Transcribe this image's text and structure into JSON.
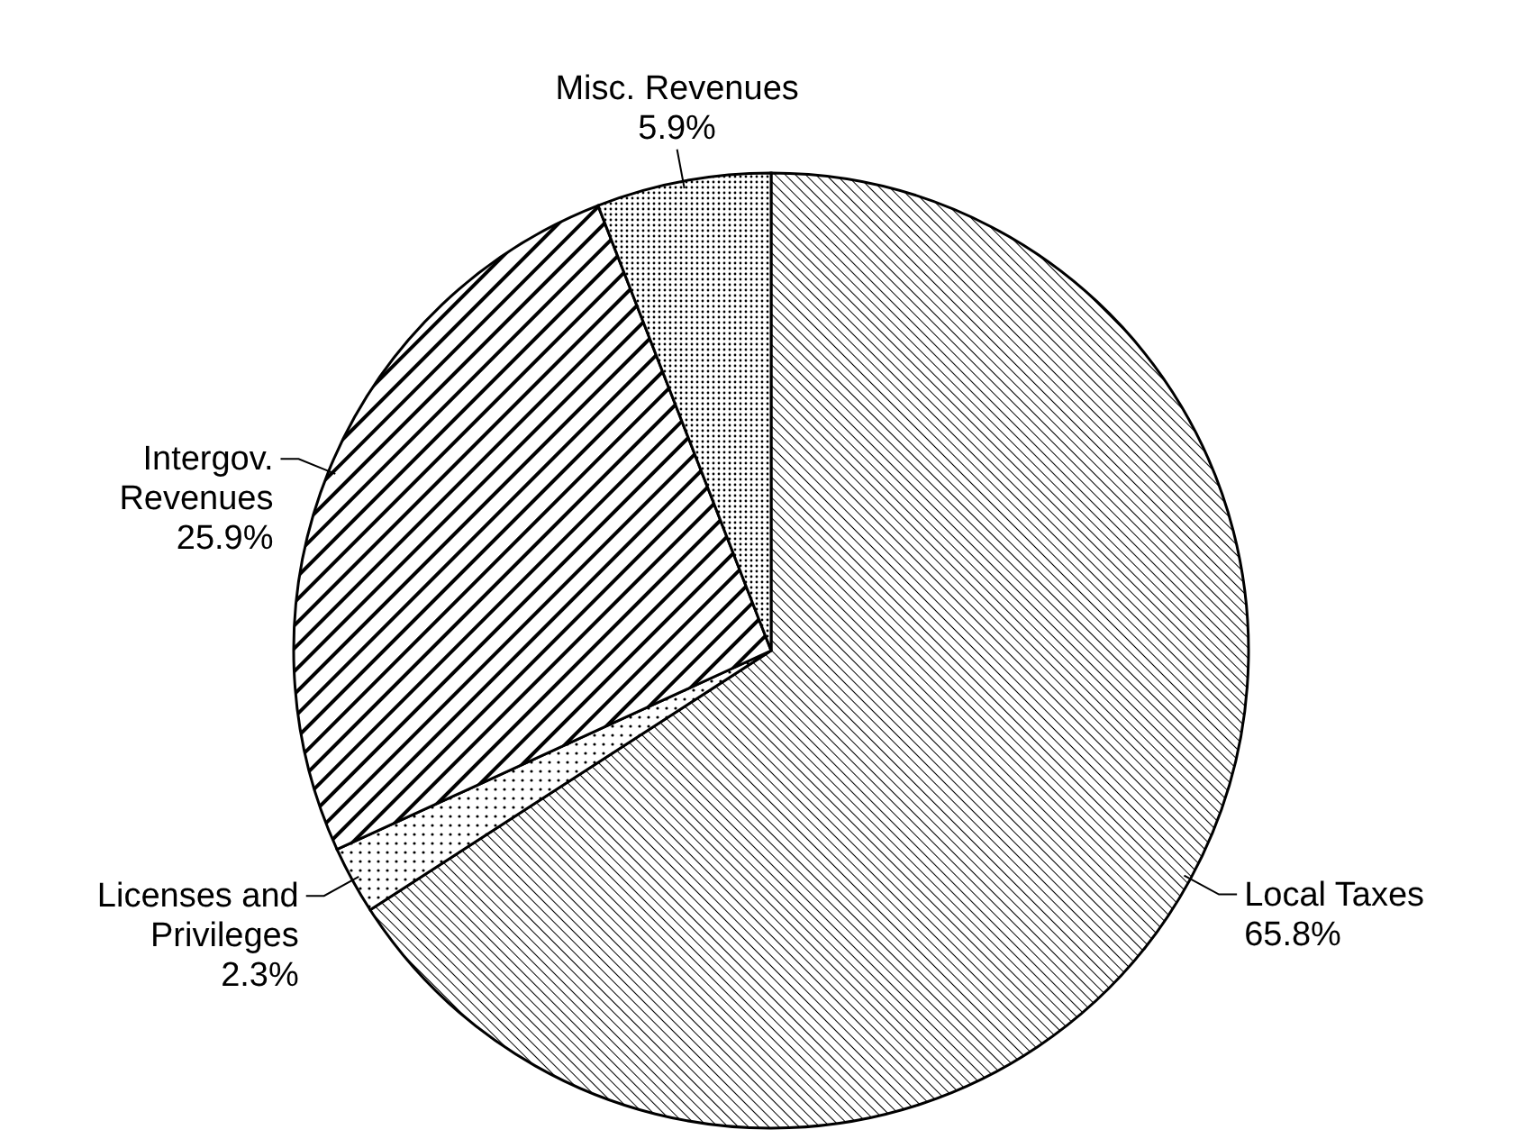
{
  "chart_data": {
    "type": "pie",
    "categories": [
      "Local Taxes",
      "Licenses and\nPrivileges",
      "Intergov.\nRevenues",
      "Misc. Revenues"
    ],
    "values": [
      65.8,
      2.3,
      25.9,
      5.9
    ],
    "value_labels": [
      "65.8%",
      "2.3%",
      "25.9%",
      "5.9%"
    ],
    "colors": [
      "#000000",
      "#000000",
      "#000000",
      "#000000"
    ]
  }
}
